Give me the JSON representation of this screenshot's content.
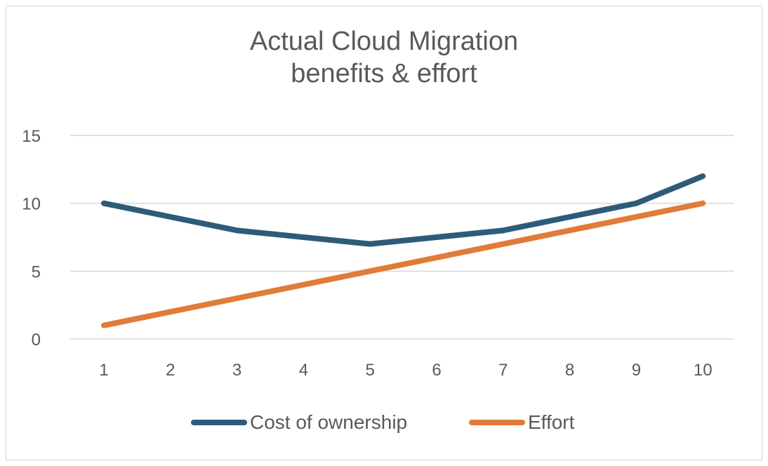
{
  "chart_data": {
    "type": "line",
    "title_lines": [
      "Actual Cloud Migration",
      "benefits & effort"
    ],
    "categories": [
      "1",
      "2",
      "3",
      "4",
      "5",
      "6",
      "7",
      "8",
      "9",
      "10"
    ],
    "series": [
      {
        "name": "Cost of ownership",
        "color": "#2e5b7a",
        "values": [
          10,
          9,
          8,
          7.5,
          7,
          7.5,
          8,
          9,
          10,
          12
        ]
      },
      {
        "name": "Effort",
        "color": "#e07b39",
        "values": [
          1,
          2,
          3,
          4,
          5,
          6,
          7,
          8,
          9,
          10
        ]
      }
    ],
    "y_ticks": [
      "0",
      "5",
      "10",
      "15"
    ],
    "ylim": [
      0,
      15
    ],
    "xlabel": "",
    "ylabel": "",
    "grid": true,
    "legend_position": "bottom",
    "colors": {
      "grid": "#d9d9d9",
      "text": "#595959"
    }
  }
}
